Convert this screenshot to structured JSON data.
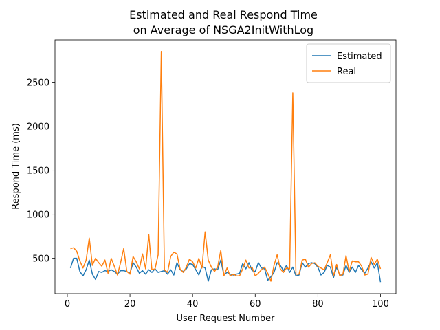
{
  "chart_data": {
    "type": "line",
    "title": [
      "Estimated and Real Respond Time",
      " on Average of NSGA2InitWithLog"
    ],
    "xlabel": "User Request Number",
    "ylabel": "Respond Time (ms)",
    "x": [
      1,
      2,
      3,
      4,
      5,
      6,
      7,
      8,
      9,
      10,
      11,
      12,
      13,
      14,
      15,
      16,
      17,
      18,
      19,
      20,
      21,
      22,
      23,
      24,
      25,
      26,
      27,
      28,
      29,
      30,
      31,
      32,
      33,
      34,
      35,
      36,
      37,
      38,
      39,
      40,
      41,
      42,
      43,
      44,
      45,
      46,
      47,
      48,
      49,
      50,
      51,
      52,
      53,
      54,
      55,
      56,
      57,
      58,
      59,
      60,
      61,
      62,
      63,
      64,
      65,
      66,
      67,
      68,
      69,
      70,
      71,
      72,
      73,
      74,
      75,
      76,
      77,
      78,
      79,
      80,
      81,
      82,
      83,
      84,
      85,
      86,
      87,
      88,
      89,
      90,
      91,
      92,
      93,
      94,
      95,
      96,
      97,
      98,
      99,
      100
    ],
    "series": [
      {
        "name": "Estimated",
        "color": "#1f77b4",
        "values": [
          390,
          500,
          500,
          350,
          300,
          370,
          480,
          320,
          260,
          350,
          340,
          360,
          350,
          370,
          350,
          320,
          360,
          360,
          350,
          330,
          450,
          400,
          330,
          360,
          320,
          370,
          340,
          380,
          340,
          350,
          360,
          320,
          370,
          310,
          450,
          370,
          350,
          380,
          440,
          430,
          370,
          310,
          410,
          390,
          240,
          370,
          380,
          370,
          480,
          310,
          340,
          320,
          310,
          320,
          330,
          440,
          380,
          450,
          360,
          350,
          450,
          390,
          380,
          250,
          290,
          340,
          450,
          420,
          360,
          420,
          340,
          400,
          300,
          310,
          450,
          400,
          440,
          450,
          440,
          400,
          310,
          340,
          420,
          400,
          280,
          400,
          310,
          310,
          420,
          340,
          400,
          340,
          420,
          370,
          330,
          390,
          460,
          390,
          450,
          230
        ]
      },
      {
        "name": "Real",
        "color": "#ff7f0e",
        "values": [
          610,
          620,
          580,
          470,
          390,
          480,
          730,
          420,
          500,
          450,
          410,
          480,
          330,
          500,
          410,
          310,
          450,
          610,
          350,
          320,
          520,
          460,
          380,
          550,
          380,
          770,
          370,
          380,
          540,
          2850,
          370,
          340,
          520,
          570,
          550,
          380,
          340,
          400,
          490,
          460,
          390,
          500,
          390,
          800,
          480,
          400,
          350,
          400,
          590,
          300,
          390,
          300,
          320,
          300,
          300,
          380,
          480,
          390,
          400,
          300,
          330,
          370,
          400,
          330,
          240,
          420,
          540,
          380,
          340,
          390,
          380,
          2380,
          320,
          320,
          480,
          490,
          400,
          440,
          450,
          410,
          390,
          370,
          450,
          540,
          300,
          430,
          300,
          320,
          530,
          350,
          470,
          460,
          460,
          410,
          310,
          320,
          510,
          430,
          490,
          380
        ]
      }
    ],
    "xlim": [
      -3.95,
      104.95
    ],
    "ylim": [
      99,
      2981
    ],
    "xticks": [
      0,
      20,
      40,
      60,
      80,
      100
    ],
    "yticks": [
      500,
      1000,
      1500,
      2000,
      2500
    ],
    "legend": "upper right"
  }
}
